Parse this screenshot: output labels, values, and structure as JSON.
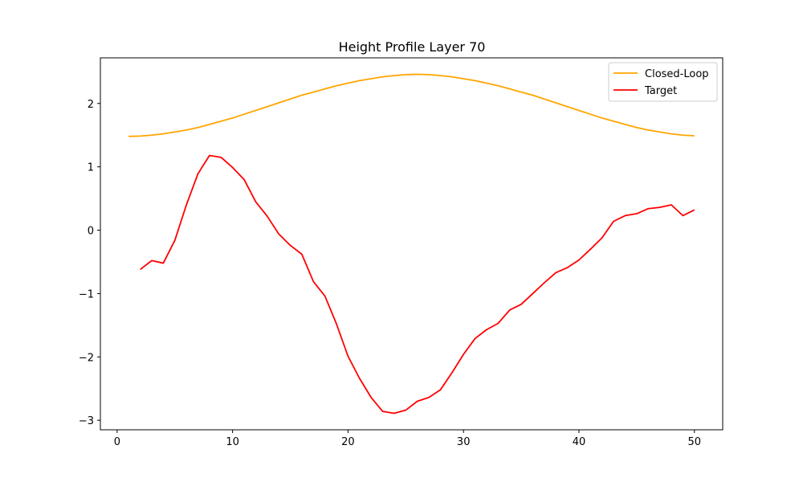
{
  "chart_data": {
    "type": "line",
    "title": "Height Profile Layer 70",
    "xlabel": "",
    "ylabel": "",
    "xlim": [
      -1.45,
      52.45
    ],
    "ylim": [
      -3.15,
      2.72
    ],
    "xticks": [
      0,
      10,
      20,
      30,
      40,
      50
    ],
    "yticks": [
      -3,
      -2,
      -1,
      0,
      1,
      2
    ],
    "grid": false,
    "legend_position": "top-right",
    "series": [
      {
        "name": "Closed-Loop",
        "color": "#ffa500",
        "x": [
          1,
          2,
          3,
          4,
          5,
          6,
          7,
          8,
          9,
          10,
          11,
          12,
          13,
          14,
          15,
          16,
          17,
          18,
          19,
          20,
          21,
          22,
          23,
          24,
          25,
          26,
          27,
          28,
          29,
          30,
          31,
          32,
          33,
          34,
          35,
          36,
          37,
          38,
          39,
          40,
          41,
          42,
          43,
          44,
          45,
          46,
          47,
          48,
          49,
          50
        ],
        "y": [
          1.48,
          1.485,
          1.5,
          1.52,
          1.55,
          1.58,
          1.62,
          1.67,
          1.72,
          1.77,
          1.83,
          1.89,
          1.95,
          2.01,
          2.07,
          2.13,
          2.18,
          2.23,
          2.28,
          2.32,
          2.36,
          2.39,
          2.42,
          2.44,
          2.455,
          2.46,
          2.455,
          2.44,
          2.42,
          2.39,
          2.36,
          2.32,
          2.28,
          2.23,
          2.18,
          2.13,
          2.07,
          2.01,
          1.95,
          1.89,
          1.83,
          1.77,
          1.72,
          1.67,
          1.62,
          1.58,
          1.55,
          1.52,
          1.5,
          1.49
        ]
      },
      {
        "name": "Target",
        "color": "#ff0000",
        "x": [
          2,
          3,
          4,
          5,
          6,
          7,
          8,
          9,
          10,
          11,
          12,
          13,
          14,
          15,
          16,
          17,
          18,
          19,
          20,
          21,
          22,
          23,
          24,
          25,
          26,
          27,
          28,
          29,
          30,
          31,
          32,
          33,
          34,
          35,
          36,
          37,
          38,
          39,
          40,
          41,
          42,
          43,
          44,
          45,
          46,
          47,
          48,
          49,
          50
        ],
        "y": [
          -0.62,
          -0.48,
          -0.52,
          -0.16,
          0.4,
          0.89,
          1.18,
          1.15,
          0.99,
          0.8,
          0.45,
          0.22,
          -0.06,
          -0.24,
          -0.38,
          -0.81,
          -1.04,
          -1.48,
          -1.99,
          -2.34,
          -2.64,
          -2.86,
          -2.89,
          -2.84,
          -2.7,
          -2.64,
          -2.52,
          -2.25,
          -1.96,
          -1.71,
          -1.57,
          -1.47,
          -1.26,
          -1.17,
          -1.0,
          -0.83,
          -0.67,
          -0.59,
          -0.47,
          -0.3,
          -0.12,
          0.14,
          0.23,
          0.26,
          0.34,
          0.36,
          0.4,
          0.23,
          0.32
        ]
      }
    ]
  }
}
